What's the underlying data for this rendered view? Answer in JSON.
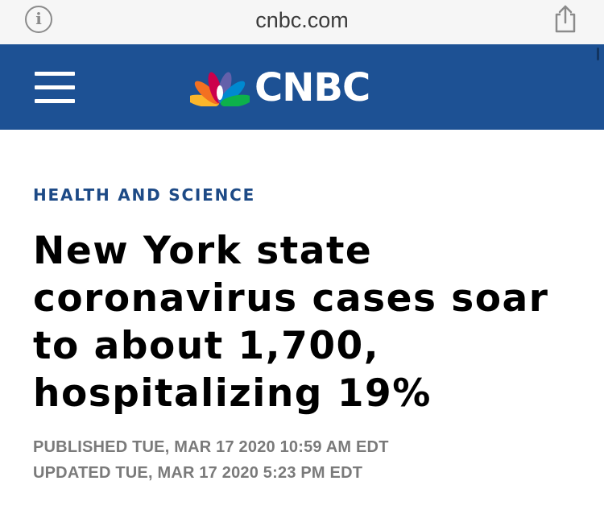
{
  "browser": {
    "url": "cnbc.com",
    "info_icon": "info-icon",
    "info_glyph": "i",
    "share_icon": "share-icon"
  },
  "header": {
    "menu_icon": "hamburger-menu-icon",
    "logo_text": "CNBC",
    "logo_icon": "nbc-peacock-icon",
    "background_color": "#1d5194"
  },
  "article": {
    "section": "HEALTH AND SCIENCE",
    "headline": "New York state coronavirus cases soar to about 1,700, hospitalizing 19%",
    "published": "PUBLISHED TUE, MAR 17 2020 10:59 AM EDT",
    "updated": "UPDATED TUE, MAR 17 2020 5:23 PM EDT",
    "section_color": "#1d4a86"
  }
}
